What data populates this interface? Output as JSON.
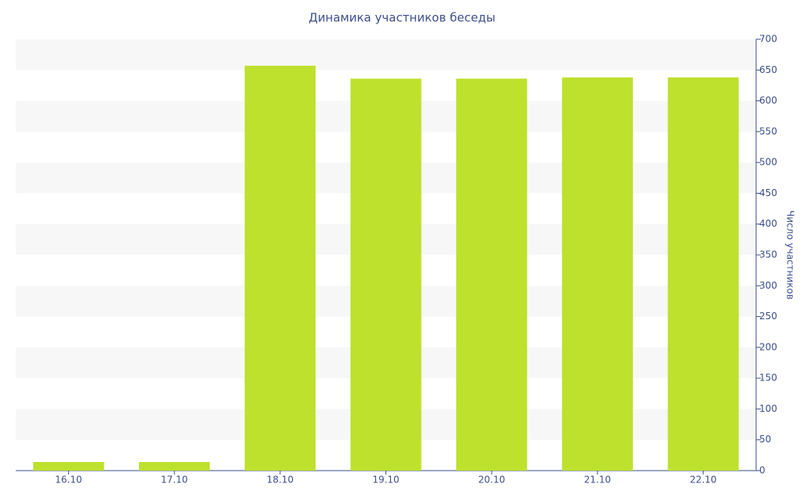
{
  "chart_data": {
    "type": "bar",
    "title": "Динамика участников беседы",
    "y_axis_label": "Число участников",
    "categories": [
      "16.10",
      "17.10",
      "18.10",
      "19.10",
      "20.10",
      "21.10",
      "22.10"
    ],
    "values": [
      14,
      14,
      657,
      636,
      636,
      638,
      638
    ],
    "color": "#bde12d",
    "ylim": [
      0,
      700
    ],
    "yticks": [
      0,
      50,
      100,
      150,
      200,
      250,
      300,
      350,
      400,
      450,
      500,
      550,
      600,
      650,
      700
    ],
    "axis_side": "right",
    "banded_grid": true
  }
}
